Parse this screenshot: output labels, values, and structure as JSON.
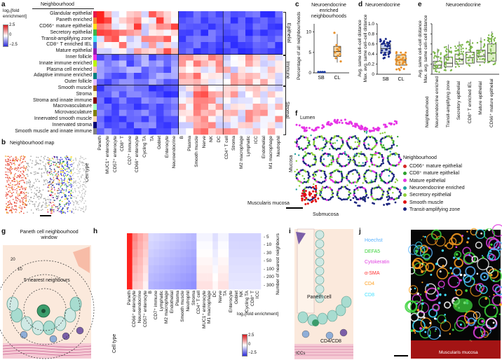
{
  "panels": {
    "a": {
      "label": "a",
      "colorbar_title": "log₂[fold enrichment]",
      "colorbar_ticks": [
        "2.5",
        "0",
        "−2.5"
      ],
      "header": "Neighbourhood",
      "row_labels": [
        "Glandular epithelial",
        "Paneth enriched",
        "CD66⁺ mature epithelial",
        "Secretory epithelial",
        "Transit-amplifying zone",
        "CD8⁺ T enriched IEL",
        "Mature epithelial",
        "Inner follicle",
        "Innate immune enriched",
        "Plasma cell enriched",
        "Adaptive immune enriched",
        "Outer follicle",
        "Smooth muscle",
        "Stroma",
        "Stroma and innate immune",
        "Macrovasculature",
        "Microvasculature",
        "Innervated smooth muscle",
        "Innervated stroma",
        "Smooth muscle and innate immune"
      ],
      "row_colors": [
        "#e6194b",
        "#f58231",
        "#ffe119",
        "#3cb44b",
        "#46f0f0",
        "#4363d8",
        "#911eb4",
        "#f032e6",
        "#bcf60c",
        "#fabebe",
        "#008080",
        "#e6beff",
        "#9a6324",
        "#fffac8",
        "#800000",
        "#aaffc3",
        "#808000",
        "#ffd8b1",
        "#000075",
        "#808080"
      ],
      "groups": [
        "Epithelial",
        "Immune",
        "Stromal"
      ],
      "col_axis_title": "Cell type",
      "col_labels": [
        "Paneth",
        "MUC1⁺ enterocyte",
        "CD57⁺ enterocyte",
        "CD8⁺ T",
        "CD7⁺ immune",
        "CD66⁺ enterocyte",
        "Cycling TA",
        "TA",
        "Goblet",
        "Enterocyte",
        "Neuroendocrine",
        "B",
        "Plasma",
        "Smooth muscle",
        "Nerve",
        "NK",
        "DC",
        "CD4⁺ T cell",
        "Stroma",
        "M2 macrophage",
        "Lymphatic",
        "ICC",
        "Endothelial",
        "M1 macrophage",
        "Neutrophil"
      ]
    },
    "b": {
      "label": "b",
      "title": "Neighbourhood map"
    },
    "c": {
      "label": "c",
      "title": "Neuroendocrine enriched neighbourhoods",
      "ylabel": "Percentage of all neighbourhoods",
      "yticks": [
        "10",
        "5",
        "0"
      ],
      "categories": [
        "SB",
        "CL"
      ]
    },
    "d": {
      "label": "d",
      "title": "Neuroendocrine",
      "ylabel_top": "Avg. same cell–cell distance",
      "ylabel_bottom": "Max. avg. same cell–cell distance",
      "yticks": [
        "1.0",
        "0.8",
        "0.6",
        "0.4",
        "0.2",
        "0"
      ],
      "categories": [
        "SB",
        "CL"
      ]
    },
    "e": {
      "label": "e",
      "title": "Neuroendocrine",
      "ylabel_top": "Avg. same cell–cell distance",
      "ylabel_bottom": "Max. avg. same cell–cell distance",
      "yticks": [
        "1.0",
        "0.8",
        "0.6",
        "0.4",
        "0.2",
        "0"
      ],
      "xaxis_title": "Neighbourhood",
      "categories": [
        "Neuroendocrine enriched",
        "Transit-amplifying zone",
        "Secretory epithelial",
        "CD8⁺ T enriched IEL",
        "Mature epithelial",
        "CD66⁺ mature epithelial"
      ]
    },
    "f": {
      "label": "f",
      "lumen": "Lumen",
      "mucosa": "Mucosa",
      "muscularis": "Muscularis mucosa",
      "submucosa": "Submucosa",
      "legend_title": "Neighbourhood",
      "legend": [
        {
          "name": "CD66⁺ mature epithelial",
          "color": "#d62728"
        },
        {
          "name": "CD8⁺ mature epithelial",
          "color": "#2ca02c"
        },
        {
          "name": "Mature epithelial",
          "color": "#e632e6"
        },
        {
          "name": "Neuroendocrine enriched",
          "color": "#20a0a0"
        },
        {
          "name": "Secretory epithelial",
          "color": "#8cd03a"
        },
        {
          "name": "Smooth muscle",
          "color": "#e01010"
        },
        {
          "name": "Transit-amplifying zone",
          "color": "#1a237e"
        }
      ]
    },
    "g": {
      "label": "g",
      "title": "Paneth cell neighbourhood window",
      "ring_20": "20",
      "ring_10": "10",
      "ring_5": "5 nearest neighbours"
    },
    "h": {
      "label": "h",
      "col_axis_title": "Cell type",
      "col_labels": [
        "Paneth",
        "CD66⁺ enterocyte",
        "Neuroendocrine",
        "CD57⁺ enterocyte",
        "B",
        "CD7⁺ immune",
        "Lymphatic",
        "M2 macrophage",
        "Endothelial",
        "Plasma",
        "Smooth muscle",
        "Neutrophil",
        "Stroma",
        "CD4⁺ T cell",
        "MUC1⁺ enterocyte",
        "M1 macrophage",
        "DC",
        "Nerve",
        "TA",
        "Enterocyte",
        "Goblet",
        "NK",
        "Cycling TA",
        "CD8⁺ T",
        "ICC"
      ],
      "row_labels": [
        "5",
        "10",
        "30",
        "50",
        "100",
        "200",
        "300"
      ],
      "row_axis_title": "Number of nearest neighbours",
      "colorbar_title": "log₂[fold enrichment]",
      "colorbar_ticks": [
        "2.5",
        "0",
        "−2.5"
      ]
    },
    "i": {
      "label": "i",
      "paneth": "Paneth cell",
      "cd": "CD4/CD8",
      "iccs": "ICCs"
    },
    "j": {
      "label": "j",
      "markers": [
        {
          "name": "Hoechst",
          "color": "#5ab4ff"
        },
        {
          "name": "DEFA5",
          "color": "#3cd23c"
        },
        {
          "name": "Cytokeratin",
          "color": "#e040e0"
        },
        {
          "name": "α-SMA",
          "color": "#ff3030"
        },
        {
          "name": "CD4",
          "color": "#ffa020"
        },
        {
          "name": "CD8",
          "color": "#40e0ff"
        }
      ],
      "region": "Muscularis mucosa"
    }
  }
}
